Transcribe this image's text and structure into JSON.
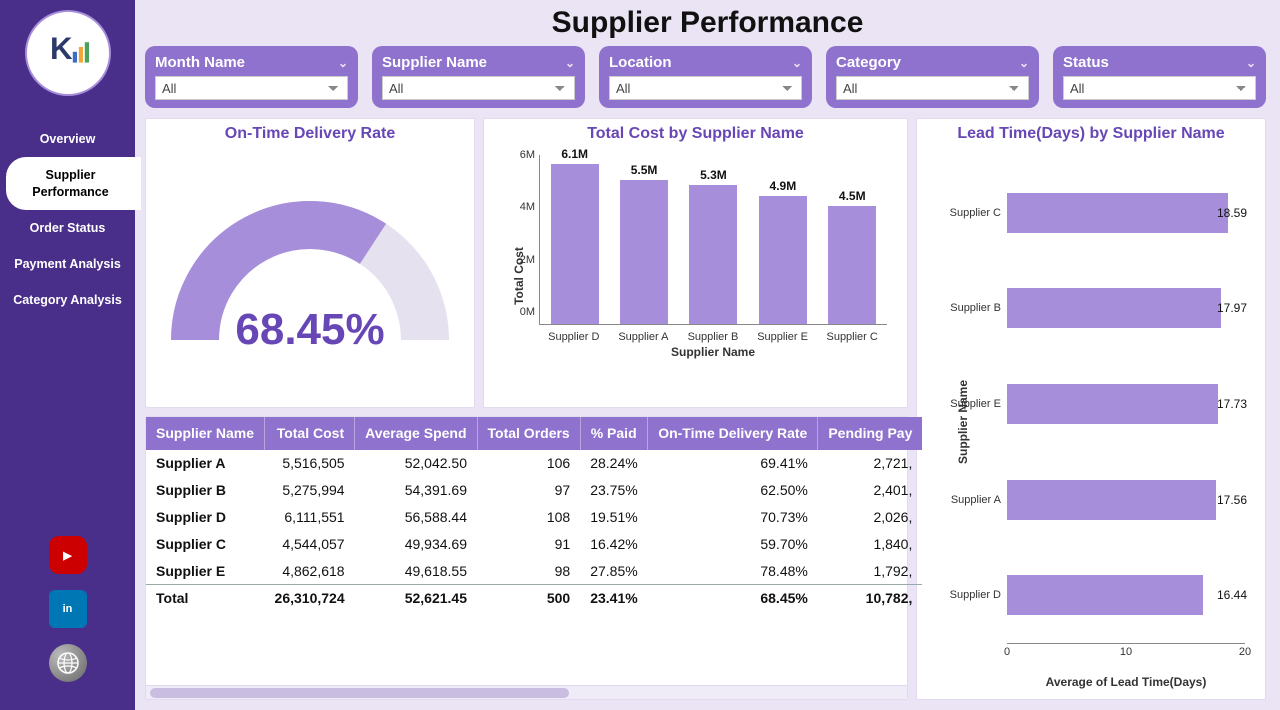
{
  "page_title": "Supplier Performance",
  "colors": {
    "primary": "#6746b5",
    "fill": "#a68edb",
    "slicer": "#8e72cd",
    "sidebar": "#4a2f8a",
    "page_bg": "#eae4f5"
  },
  "sidebar": {
    "items": [
      {
        "label": "Overview"
      },
      {
        "label": "Supplier Performance"
      },
      {
        "label": "Order Status"
      },
      {
        "label": "Payment Analysis"
      },
      {
        "label": "Category Analysis"
      }
    ],
    "active_index": 1
  },
  "slicers": [
    {
      "label": "Month Name",
      "value": "All"
    },
    {
      "label": "Supplier Name",
      "value": "All"
    },
    {
      "label": "Location",
      "value": "All"
    },
    {
      "label": "Category",
      "value": "All"
    },
    {
      "label": "Status",
      "value": "All"
    }
  ],
  "gauge": {
    "title": "On-Time Delivery Rate",
    "value_text": "68.45%",
    "value_pct": 68.45,
    "fill_color": "#a68edb",
    "track_color": "#e6e1ef"
  },
  "cost_chart": {
    "title": "Total Cost by Supplier Name",
    "type": "bar",
    "y_label": "Total Cost",
    "x_label": "Supplier Name",
    "y_max": 6500000,
    "y_ticks": [
      {
        "v": 0,
        "label": "0M"
      },
      {
        "v": 2000000,
        "label": "2M"
      },
      {
        "v": 4000000,
        "label": "4M"
      },
      {
        "v": 6000000,
        "label": "6M"
      }
    ],
    "bars": [
      {
        "cat": "Supplier D",
        "v": 6100000,
        "label": "6.1M"
      },
      {
        "cat": "Supplier A",
        "v": 5500000,
        "label": "5.5M"
      },
      {
        "cat": "Supplier B",
        "v": 5300000,
        "label": "5.3M"
      },
      {
        "cat": "Supplier E",
        "v": 4900000,
        "label": "4.9M"
      },
      {
        "cat": "Supplier C",
        "v": 4500000,
        "label": "4.5M"
      }
    ],
    "bar_color": "#a68edb"
  },
  "lead_chart": {
    "title": "Lead Time(Days) by Supplier Name",
    "type": "hbar",
    "y_label": "Supplier Name",
    "x_label": "Average of Lead Time(Days)",
    "x_max": 20,
    "x_ticks": [
      {
        "v": 0,
        "label": "0"
      },
      {
        "v": 10,
        "label": "10"
      },
      {
        "v": 20,
        "label": "20"
      }
    ],
    "bars": [
      {
        "cat": "Supplier C",
        "v": 18.59,
        "label": "18.59"
      },
      {
        "cat": "Supplier B",
        "v": 17.97,
        "label": "17.97"
      },
      {
        "cat": "Supplier E",
        "v": 17.73,
        "label": "17.73"
      },
      {
        "cat": "Supplier A",
        "v": 17.56,
        "label": "17.56"
      },
      {
        "cat": "Supplier D",
        "v": 16.44,
        "label": "16.44"
      }
    ],
    "bar_color": "#a68edb"
  },
  "table": {
    "columns": [
      {
        "label": "Supplier Name",
        "align": "left"
      },
      {
        "label": "Total Cost",
        "align": "right"
      },
      {
        "label": "Average Spend",
        "align": "right"
      },
      {
        "label": "Total Orders",
        "align": "right"
      },
      {
        "label": "% Paid",
        "align": "left"
      },
      {
        "label": "On-Time Delivery Rate",
        "align": "right"
      },
      {
        "label": "Pending Pay",
        "align": "right"
      }
    ],
    "rows": [
      [
        "Supplier A",
        "5,516,505",
        "52,042.50",
        "106",
        "28.24%",
        "69.41%",
        "2,721,"
      ],
      [
        "Supplier B",
        "5,275,994",
        "54,391.69",
        "97",
        "23.75%",
        "62.50%",
        "2,401,"
      ],
      [
        "Supplier D",
        "6,111,551",
        "56,588.44",
        "108",
        "19.51%",
        "70.73%",
        "2,026,"
      ],
      [
        "Supplier C",
        "4,544,057",
        "49,934.69",
        "91",
        "16.42%",
        "59.70%",
        "1,840,"
      ],
      [
        "Supplier E",
        "4,862,618",
        "49,618.55",
        "98",
        "27.85%",
        "78.48%",
        "1,792,"
      ]
    ],
    "total_row": [
      "Total",
      "26,310,724",
      "52,621.45",
      "500",
      "23.41%",
      "68.45%",
      "10,782,"
    ]
  }
}
